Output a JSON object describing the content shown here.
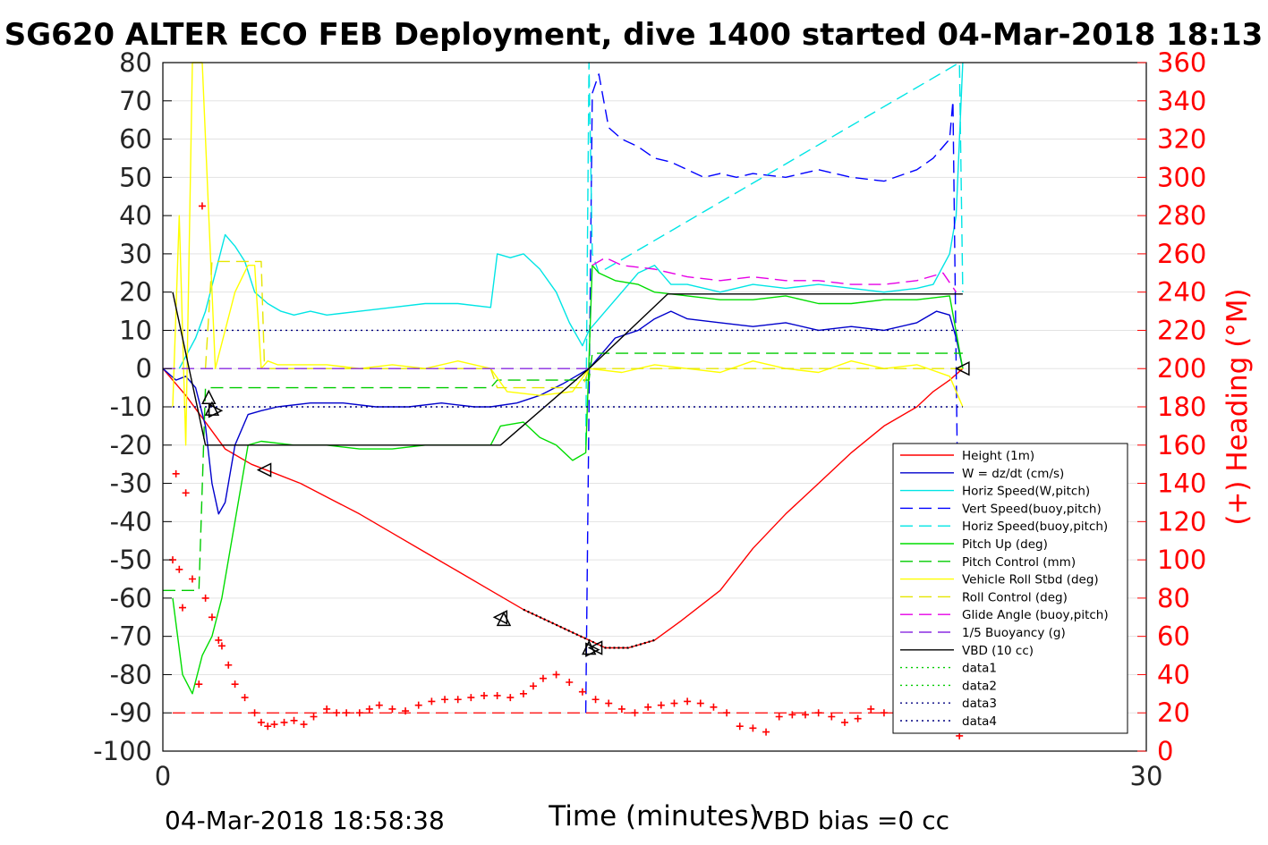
{
  "chart_data": {
    "type": "line",
    "title": "SG620 ALTER ECO FEB Deployment, dive 1400 started 04-Mar-2018 18:13",
    "xlabel": "Time (minutes)",
    "ylabel_right": "(+) Heading (°M)",
    "xlim": [
      0,
      30
    ],
    "ylim_left": [
      -100,
      80
    ],
    "ylim_right": [
      0,
      360
    ],
    "x_ticks": [
      "0",
      "30"
    ],
    "y_ticks_left": [
      "80",
      "70",
      "60",
      "50",
      "40",
      "30",
      "20",
      "10",
      "0",
      "-10",
      "-20",
      "-30",
      "-40",
      "-50",
      "-60",
      "-70",
      "-80",
      "-90",
      "-100"
    ],
    "y_ticks_right": [
      "360",
      "340",
      "320",
      "300",
      "280",
      "260",
      "240",
      "220",
      "200",
      "180",
      "160",
      "140",
      "120",
      "100",
      "80",
      "60",
      "40",
      "20",
      "0"
    ],
    "grid": true,
    "legend_position": "lower-right",
    "footer_left": "04-Mar-2018 18:58:38",
    "footer_right": "VBD bias =0 cc",
    "colors": {
      "height": "#ff0000",
      "w": "#0000cc",
      "horiz_speed": "#00e5e5",
      "vert_speed_buoy": "#0000ff",
      "horiz_speed_buoy": "#00e5e5",
      "pitch": "#00dd00",
      "pitch_control": "#00cc00",
      "roll": "#ffff00",
      "roll_control": "#e6e600",
      "glide_angle": "#e600e6",
      "buoyancy": "#cc00cc",
      "vbd": "#000000",
      "heading": "#ff0000",
      "right_axis": "#ff0000"
    },
    "series": [
      {
        "name": "Height (1m)",
        "style": "solid",
        "color": "#ff0000",
        "x": [
          0.0,
          0.7,
          1.3,
          1.9,
          2.7,
          3.3,
          4.2,
          5.1,
          6.0,
          7.0,
          8.0,
          9.0,
          10.0,
          11.0,
          12.0,
          12.5,
          13.0,
          13.5,
          14.2,
          15.0,
          15.8,
          17.0,
          18.0,
          19.0,
          20.0,
          21.0,
          22.0,
          23.0,
          23.5,
          24.0,
          24.4
        ],
        "y": [
          0,
          -7,
          -14,
          -21,
          -25,
          -27,
          -30,
          -34,
          -38,
          -43,
          -48,
          -53,
          -58,
          -63,
          -67,
          -69,
          -71,
          -73,
          -73,
          -71,
          -66,
          -58,
          -47,
          -38,
          -30,
          -22,
          -15,
          -10,
          -6,
          -3,
          0
        ]
      },
      {
        "name": "W = dz/dt (cm/s)",
        "style": "solid",
        "color": "#0000cc",
        "x": [
          0.0,
          0.4,
          0.7,
          1.0,
          1.3,
          1.5,
          1.7,
          1.9,
          2.2,
          2.6,
          3.0,
          3.5,
          4.5,
          5.5,
          6.5,
          7.5,
          8.5,
          9.5,
          10.0,
          10.8,
          11.5,
          12.2,
          12.8,
          13.0,
          13.3,
          13.8,
          14.5,
          15.0,
          15.5,
          16.0,
          17.0,
          18.0,
          19.0,
          20.0,
          21.0,
          22.0,
          23.0,
          23.6,
          24.0,
          24.2,
          24.4
        ],
        "y": [
          0,
          -3,
          -2,
          -5,
          -15,
          -30,
          -38,
          -35,
          -20,
          -12,
          -11,
          -10,
          -9,
          -9,
          -10,
          -10,
          -9,
          -10,
          -10,
          -9,
          -7,
          -4,
          -1,
          0,
          3,
          8,
          10,
          13,
          15,
          13,
          12,
          11,
          12,
          10,
          11,
          10,
          12,
          15,
          14,
          8,
          0
        ]
      },
      {
        "name": "Horiz Speed(W,pitch)",
        "style": "solid",
        "color": "#00e5e5",
        "x": [
          0.5,
          1.0,
          1.3,
          1.6,
          1.9,
          2.2,
          2.5,
          2.8,
          3.2,
          3.6,
          4.0,
          4.5,
          5.0,
          6.0,
          7.0,
          8.0,
          9.0,
          10.0,
          10.2,
          10.6,
          11.0,
          11.5,
          12.0,
          12.4,
          12.8,
          13.0,
          13.5,
          14.0,
          14.5,
          15.0,
          15.5,
          16.0,
          17.0,
          18.0,
          19.0,
          20.0,
          21.0,
          22.0,
          23.0,
          23.5,
          24.0,
          24.2,
          24.4
        ],
        "y": [
          0,
          8,
          15,
          25,
          35,
          32,
          28,
          20,
          17,
          15,
          14,
          15,
          14,
          15,
          16,
          17,
          17,
          16,
          30,
          29,
          30,
          26,
          20,
          12,
          6,
          10,
          15,
          20,
          25,
          27,
          22,
          22,
          20,
          22,
          21,
          22,
          21,
          20,
          21,
          22,
          30,
          40,
          80
        ]
      },
      {
        "name": "Vert Speed(buoy,pitch)",
        "style": "dashed",
        "color": "#0000ff",
        "x": [
          12.9,
          13.1,
          13.3,
          13.6,
          14.0,
          14.5,
          15.0,
          15.5,
          16.0,
          16.5,
          17.0,
          17.5,
          18.0,
          19.0,
          20.0,
          21.0,
          22.0,
          23.0,
          23.5,
          24.0,
          24.1,
          24.3
        ],
        "y": [
          -90,
          72,
          77,
          63,
          60,
          58,
          55,
          54,
          52,
          50,
          51,
          50,
          51,
          50,
          52,
          50,
          49,
          52,
          55,
          60,
          70,
          -70
        ]
      },
      {
        "name": "Horiz Speed(buoy,pitch)",
        "style": "dashed",
        "color": "#00e5e5",
        "x": [
          12.9,
          13.0,
          13.1,
          13.3,
          24.3,
          24.4
        ],
        "y": [
          -20,
          80,
          30,
          25,
          80,
          20
        ]
      },
      {
        "name": "Pitch Up (deg)",
        "style": "solid",
        "color": "#00dd00",
        "x": [
          0.3,
          0.6,
          0.9,
          1.2,
          1.5,
          1.8,
          2.2,
          2.6,
          3.0,
          4.0,
          5.0,
          6.0,
          7.0,
          8.0,
          9.0,
          10.0,
          10.3,
          11.0,
          11.5,
          12.0,
          12.5,
          12.9,
          13.1,
          13.3,
          13.8,
          14.5,
          15.0,
          16.0,
          17.0,
          18.0,
          19.0,
          20.0,
          21.0,
          22.0,
          23.0,
          24.0,
          24.4
        ],
        "y": [
          -60,
          -80,
          -85,
          -75,
          -70,
          -60,
          -40,
          -20,
          -19,
          -20,
          -20,
          -21,
          -21,
          -20,
          -20,
          -20,
          -15,
          -14,
          -18,
          -20,
          -24,
          -22,
          27,
          25,
          23,
          22,
          20,
          19,
          18,
          18,
          19,
          17,
          17,
          18,
          18,
          19,
          0
        ]
      },
      {
        "name": "Pitch Control (mm)",
        "style": "dashed",
        "color": "#00cc00",
        "x": [
          0.0,
          1.1,
          1.3,
          1.4,
          10.0,
          10.2,
          13.0,
          13.1,
          24.4
        ],
        "y": [
          -58,
          -58,
          -5,
          -5,
          -5,
          -3,
          -3,
          4,
          4
        ]
      },
      {
        "name": "Vehicle Roll Stbd (deg)",
        "style": "solid",
        "color": "#ffff00",
        "x": [
          0.3,
          0.5,
          0.7,
          0.9,
          1.2,
          1.6,
          2.2,
          2.6,
          2.8,
          3.0,
          3.2,
          3.5,
          4.0,
          5.0,
          6.0,
          7.0,
          8.0,
          9.0,
          10.0,
          10.5,
          11.5,
          12.5,
          13.0,
          14.0,
          15.0,
          16.0,
          17.0,
          18.0,
          19.0,
          20.0,
          21.0,
          22.0,
          23.0,
          24.0,
          24.4
        ],
        "y": [
          -10,
          40,
          -20,
          80,
          80,
          0,
          20,
          27,
          27,
          0,
          2,
          1,
          1,
          1,
          0,
          1,
          0,
          2,
          0,
          -6,
          -7,
          -6,
          0,
          -1,
          1,
          0,
          -1,
          2,
          0,
          -1,
          2,
          0,
          1,
          -2,
          -10
        ]
      },
      {
        "name": "Roll Control (deg)",
        "style": "dashed",
        "color": "#e6e600",
        "x": [
          1.3,
          1.5,
          3.0,
          3.1,
          10.0,
          10.2,
          12.8,
          13.0,
          24.4
        ],
        "y": [
          0,
          28,
          28,
          0,
          0,
          -5,
          -5,
          0,
          0
        ]
      },
      {
        "name": "Glide Angle (buoy,pitch)",
        "style": "dashed",
        "color": "#e600e6",
        "x": [
          13.1,
          13.5,
          14.0,
          15.0,
          16.0,
          17.0,
          18.0,
          19.0,
          20.0,
          21.0,
          22.0,
          23.0,
          23.8,
          24.2
        ],
        "y": [
          27,
          29,
          27,
          26,
          24,
          23,
          24,
          23,
          23,
          22,
          22,
          23,
          25,
          20
        ]
      },
      {
        "name": "1/5 Buoyancy (g)",
        "style": "dashed",
        "color": "#8a2be2",
        "x": [
          0.0,
          13.0
        ],
        "y": [
          0,
          0
        ]
      },
      {
        "name": "VBD (10 cc)",
        "style": "solid",
        "color": "#000000",
        "x": [
          0.3,
          1.3,
          10.3,
          13.0,
          15.4,
          24.4
        ],
        "y": [
          20,
          -20,
          -20,
          0,
          19.5,
          19.5
        ]
      },
      {
        "name": "data1",
        "style": "dotted",
        "color": "#00cc00",
        "x": [],
        "y": []
      },
      {
        "name": "data2",
        "style": "dotted",
        "color": "#00cc00",
        "x": [],
        "y": []
      },
      {
        "name": "data3",
        "style": "dotted",
        "color": "#000080",
        "x": [
          0.3,
          24.4
        ],
        "y": [
          10,
          10
        ]
      },
      {
        "name": "data4",
        "style": "dotted",
        "color": "#000080",
        "x": [
          0.3,
          24.4
        ],
        "y": [
          -10,
          -10
        ]
      }
    ],
    "heading": {
      "x": [
        0.3,
        0.4,
        0.5,
        0.6,
        0.7,
        0.9,
        1.1,
        1.2,
        1.3,
        1.5,
        1.7,
        1.8,
        2.0,
        2.2,
        2.5,
        2.8,
        3.0,
        3.2,
        3.4,
        3.7,
        4.0,
        4.3,
        4.6,
        5.0,
        5.3,
        5.6,
        6.0,
        6.3,
        6.6,
        7.0,
        7.4,
        7.8,
        8.2,
        8.6,
        9.0,
        9.4,
        9.8,
        10.2,
        10.6,
        11.0,
        11.3,
        11.6,
        12.0,
        12.4,
        12.8,
        13.2,
        13.6,
        14.0,
        14.4,
        14.8,
        15.2,
        15.6,
        16.0,
        16.4,
        16.8,
        17.2,
        17.6,
        18.0,
        18.4,
        18.8,
        19.2,
        19.6,
        20.0,
        20.4,
        20.8,
        21.2,
        21.6,
        22.0,
        22.4,
        22.8,
        23.2,
        23.6,
        24.0,
        24.3
      ],
      "y": [
        100,
        145,
        95,
        75,
        135,
        90,
        35,
        285,
        80,
        70,
        58,
        55,
        45,
        35,
        28,
        20,
        15,
        13,
        14,
        15,
        16,
        14,
        18,
        22,
        20,
        20,
        20,
        22,
        24,
        22,
        21,
        24,
        26,
        27,
        27,
        28,
        29,
        29,
        28,
        30,
        34,
        38,
        40,
        36,
        31,
        27,
        25,
        22,
        20,
        23,
        24,
        25,
        26,
        25,
        23,
        20,
        13,
        12,
        10,
        18,
        19,
        19,
        20,
        18,
        15,
        17,
        22,
        20,
        20,
        18,
        22,
        28,
        30,
        8
      ]
    },
    "triangle_markers": [
      {
        "x": 1.4,
        "y": -7.5,
        "dir": "up"
      },
      {
        "x": 1.5,
        "y": -10.5,
        "dir": "up"
      },
      {
        "x": 1.6,
        "y": -11,
        "dir": "right"
      },
      {
        "x": 3.1,
        "y": -26.5,
        "dir": "left"
      },
      {
        "x": 10.3,
        "y": -65,
        "dir": "left"
      },
      {
        "x": 10.4,
        "y": -65.5,
        "dir": "up"
      },
      {
        "x": 13.0,
        "y": -73,
        "dir": "up"
      },
      {
        "x": 13.2,
        "y": -73,
        "dir": "left"
      },
      {
        "x": 13.1,
        "y": -73.5,
        "dir": "right"
      },
      {
        "x": 24.4,
        "y": 0,
        "dir": "left"
      }
    ],
    "heading_reference": 20
  }
}
